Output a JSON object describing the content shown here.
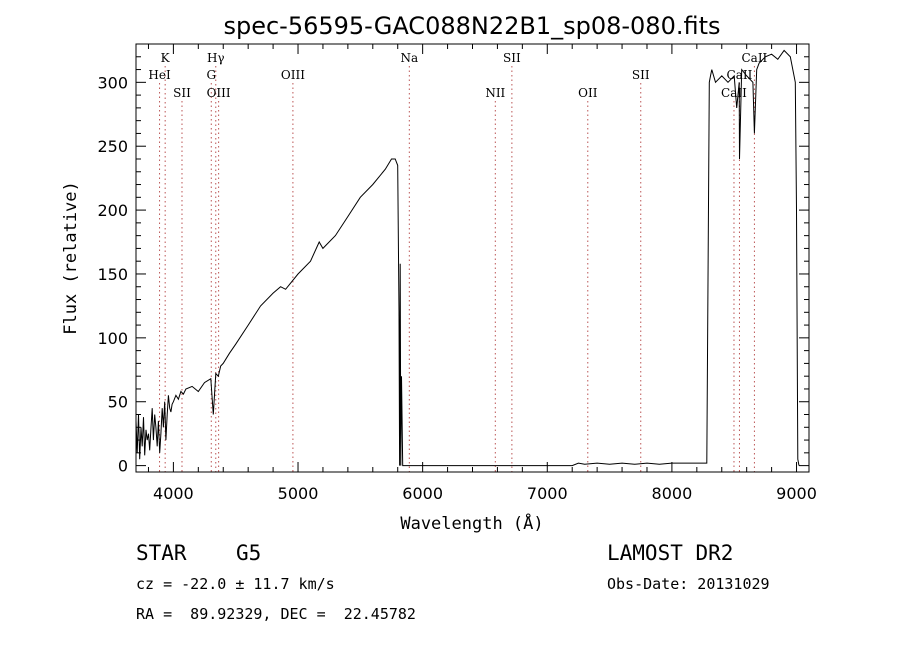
{
  "chart_data": {
    "type": "line",
    "title": "spec-56595-GAC088N22B1_sp08-080.fits",
    "xlabel": "Wavelength (Å)",
    "ylabel": "Flux (relative)",
    "xlim": [
      3700,
      9100
    ],
    "ylim": [
      -5,
      330
    ],
    "xticks": [
      4000,
      5000,
      6000,
      7000,
      8000,
      9000
    ],
    "yticks": [
      0,
      50,
      100,
      150,
      200,
      250,
      300
    ],
    "grid": false,
    "line_color": "#000000",
    "series": [
      {
        "x": [
          3700,
          3710,
          3720,
          3730,
          3740,
          3750,
          3760,
          3770,
          3780,
          3790,
          3800,
          3810,
          3820,
          3830,
          3840,
          3850,
          3860,
          3870,
          3880,
          3890,
          3900,
          3910,
          3920,
          3930,
          3940,
          3950,
          3960,
          3970,
          3980,
          3990,
          4000,
          4020,
          4040,
          4060,
          4080,
          4100,
          4150,
          4200,
          4250,
          4300,
          4320,
          4340,
          4360,
          4380,
          4400,
          4450,
          4500,
          4600,
          4700,
          4800,
          4860,
          4900,
          5000,
          5100,
          5170,
          5200,
          5300,
          5400,
          5500,
          5600,
          5700,
          5750,
          5780,
          5800,
          5810,
          5815,
          5820,
          5825,
          5830,
          5840,
          5850,
          6000,
          6500,
          7000,
          7200,
          7250,
          7300,
          7400,
          7500,
          7600,
          7700,
          7800,
          7900,
          8000,
          8100,
          8200,
          8280,
          8300,
          8310,
          8320,
          8350,
          8400,
          8450,
          8500,
          8520,
          8540,
          8542,
          8560,
          8600,
          8650,
          8662,
          8680,
          8700,
          8750,
          8800,
          8850,
          8900,
          8950,
          8990,
          9000,
          9010,
          9020
        ],
        "values": [
          35,
          10,
          40,
          5,
          30,
          15,
          38,
          8,
          28,
          20,
          25,
          12,
          30,
          45,
          20,
          40,
          30,
          15,
          35,
          10,
          25,
          45,
          30,
          50,
          20,
          40,
          55,
          45,
          42,
          48,
          50,
          55,
          52,
          58,
          56,
          60,
          62,
          58,
          65,
          68,
          40,
          72,
          70,
          78,
          80,
          88,
          95,
          110,
          125,
          135,
          140,
          138,
          150,
          160,
          175,
          170,
          180,
          195,
          210,
          220,
          232,
          240,
          240,
          235,
          120,
          0,
          158,
          0,
          70,
          0,
          0,
          0,
          0,
          0,
          0,
          2,
          1,
          2,
          1,
          2,
          1,
          2,
          1,
          2,
          2,
          2,
          2,
          300,
          305,
          310,
          300,
          305,
          300,
          305,
          280,
          300,
          240,
          310,
          305,
          300,
          260,
          310,
          315,
          320,
          322,
          318,
          325,
          320,
          300,
          200,
          5,
          0
        ]
      }
    ],
    "annotations": [
      {
        "label": "K",
        "x": 3934,
        "row": 1
      },
      {
        "label": "HeI",
        "x": 3889,
        "row": 2
      },
      {
        "label": "SII",
        "x": 4069,
        "row": 3
      },
      {
        "label": "Hγ",
        "x": 4340,
        "row": 1
      },
      {
        "label": "G",
        "x": 4304,
        "row": 2
      },
      {
        "label": "OIII",
        "x": 4363,
        "row": 3
      },
      {
        "label": "OIII",
        "x": 4959,
        "row": 2
      },
      {
        "label": "Na",
        "x": 5893,
        "row": 1
      },
      {
        "label": "SII",
        "x": 6716,
        "row": 1
      },
      {
        "label": "NII",
        "x": 6583,
        "row": 3
      },
      {
        "label": "OII",
        "x": 7325,
        "row": 3
      },
      {
        "label": "SII",
        "x": 7750,
        "row": 2
      },
      {
        "label": "CaII",
        "x": 8662,
        "row": 1
      },
      {
        "label": "CaII",
        "x": 8542,
        "row": 2
      },
      {
        "label": "CaII",
        "x": 8498,
        "row": 3
      }
    ]
  },
  "footer": {
    "class_label": "STAR",
    "subclass": "G5",
    "survey": "LAMOST DR2",
    "cz": "cz = -22.0 ± 11.7 km/s",
    "obs_date": "Obs-Date: 20131029",
    "coords": "RA =  89.92329, DEC =  22.45782"
  }
}
